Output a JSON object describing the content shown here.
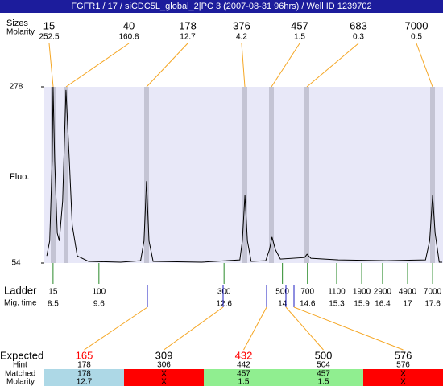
{
  "chart_data": {
    "type": "line",
    "title": "FGFR1 / 17 / siCDC5L_global_2|PC 3 (2007-08-31 96hrs) / Well ID 1239702",
    "y_label": "Fluo.",
    "ylim": [
      54,
      278
    ],
    "yticks": [
      54,
      278
    ],
    "xlim": [
      8.29,
      17.85
    ],
    "color": "#000000",
    "x": [
      8.35,
      8.42,
      8.48,
      8.5,
      8.54,
      8.6,
      8.65,
      8.73,
      8.81,
      8.89,
      8.96,
      9.08,
      9.35,
      10.12,
      10.6,
      10.68,
      10.74,
      10.8,
      10.9,
      12.06,
      12.98,
      13.04,
      13.1,
      13.16,
      13.25,
      13.6,
      13.69,
      13.75,
      13.83,
      13.95,
      14.53,
      14.59,
      14.68,
      15.34,
      16.5,
      17.43,
      17.53,
      17.6,
      17.66,
      17.76,
      17.83
    ],
    "values": [
      63,
      82,
      184,
      278,
      184,
      92,
      82,
      133,
      274,
      184,
      102,
      63,
      56,
      55,
      57,
      82,
      158,
      82,
      56,
      55,
      58,
      82,
      140,
      82,
      56,
      57,
      71,
      87,
      71,
      59,
      61,
      65,
      60,
      58,
      57,
      58,
      82,
      140,
      92,
      55,
      55
    ]
  },
  "peaks": {
    "sizes_label": "Sizes",
    "molarity_label": "Molarity",
    "sizes": [
      15,
      40,
      178,
      376,
      457,
      683,
      7000
    ],
    "molarity": [
      252.5,
      160.8,
      12.7,
      4.2,
      1.5,
      0.3,
      0.5
    ]
  },
  "ladder": {
    "label": "Ladder",
    "time_label": "Mig. time",
    "sizes": [
      15,
      100,
      300,
      500,
      700,
      1100,
      1900,
      2900,
      4900,
      7000
    ],
    "times": [
      8.5,
      9.6,
      12.6,
      14,
      14.6,
      15.3,
      15.9,
      16.4,
      17,
      17.6
    ]
  },
  "expected": {
    "label": "Expected",
    "hint_label": "Hint",
    "matched_label": "Matched",
    "molarity_label": "Molarity",
    "values": [
      165,
      309,
      432,
      500,
      576
    ],
    "value_colors": [
      "#ff0000",
      "#000000",
      "#ff0000",
      "#000000",
      "#000000"
    ],
    "hint": [
      178,
      306,
      442,
      504,
      576
    ],
    "matched": [
      "178",
      "X",
      "457",
      "457",
      "X"
    ],
    "molarity": [
      "12.7",
      "X",
      "1.5",
      "1.5",
      "X"
    ],
    "match_colors": [
      "#add8e6",
      "#ff0000",
      "#90ee90",
      "#90ee90",
      "#ff0000"
    ]
  }
}
